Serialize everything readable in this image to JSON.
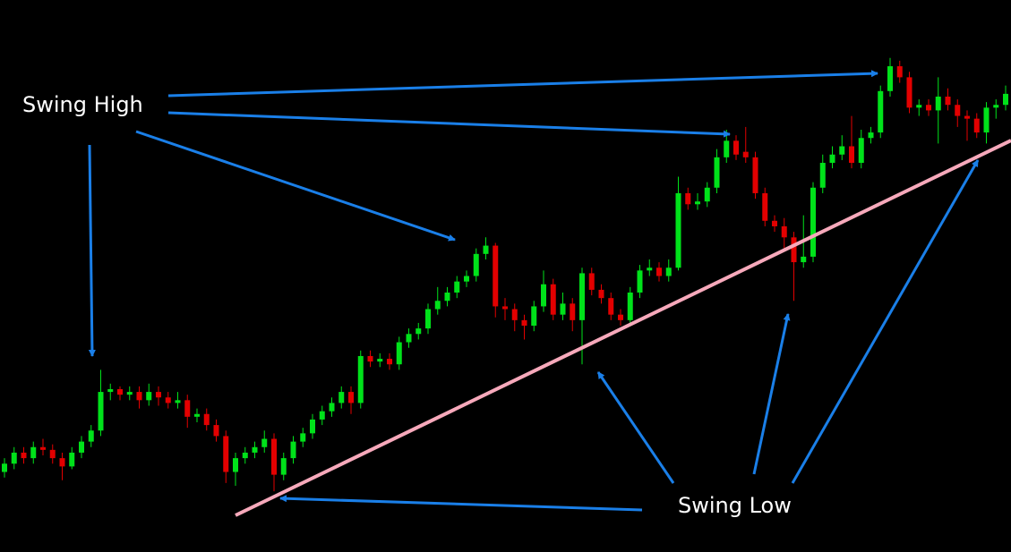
{
  "chart_data": {
    "type": "candlestick",
    "annotations": [
      "Swing High",
      "Swing Low"
    ],
    "up_color": "#00e21a",
    "down_color": "#e30000",
    "ylim": [
      0,
      100
    ],
    "ohlc": [
      [
        14.5,
        17,
        13.5,
        16
      ],
      [
        16,
        19,
        15,
        18
      ],
      [
        18,
        19,
        16,
        17
      ],
      [
        17,
        20,
        16,
        19
      ],
      [
        19,
        20.5,
        17.5,
        18.5
      ],
      [
        18.5,
        19.5,
        16,
        17
      ],
      [
        17,
        18,
        13,
        15.5
      ],
      [
        15.5,
        19,
        15,
        18
      ],
      [
        18,
        21,
        17,
        20
      ],
      [
        20,
        23,
        19,
        22
      ],
      [
        22,
        33,
        21,
        29
      ],
      [
        29,
        30.5,
        27.5,
        29.5
      ],
      [
        29.5,
        30,
        27.5,
        28.5
      ],
      [
        28.5,
        30,
        27.5,
        29
      ],
      [
        29,
        30,
        26,
        27.5
      ],
      [
        27.5,
        30.5,
        26.5,
        29
      ],
      [
        29,
        30,
        26.5,
        28
      ],
      [
        28,
        29,
        26,
        27
      ],
      [
        27,
        29,
        26,
        27.5
      ],
      [
        27.5,
        28.5,
        22.5,
        24.5
      ],
      [
        24.5,
        26,
        23.5,
        25
      ],
      [
        25,
        26,
        22,
        23
      ],
      [
        23,
        24,
        20,
        21
      ],
      [
        21,
        22,
        12.5,
        14.5
      ],
      [
        14.5,
        18,
        12,
        17
      ],
      [
        17,
        19,
        16,
        18
      ],
      [
        18,
        20,
        17,
        19
      ],
      [
        19,
        22,
        18,
        20.5
      ],
      [
        20.5,
        21.5,
        11,
        14
      ],
      [
        14,
        18,
        13,
        17
      ],
      [
        17,
        21,
        16,
        20
      ],
      [
        20,
        22.5,
        19,
        21.5
      ],
      [
        21.5,
        25,
        20.5,
        24
      ],
      [
        24,
        26.5,
        23,
        25.5
      ],
      [
        25.5,
        28,
        24.5,
        27
      ],
      [
        27,
        30,
        26,
        29
      ],
      [
        29,
        30,
        25,
        27
      ],
      [
        27,
        36.5,
        26,
        35.5
      ],
      [
        35.5,
        36.5,
        33.5,
        34.5
      ],
      [
        34.5,
        36,
        33.5,
        35
      ],
      [
        35,
        36,
        33,
        34
      ],
      [
        34,
        39,
        33,
        38
      ],
      [
        38,
        40.5,
        37,
        39.5
      ],
      [
        39.5,
        41.5,
        38.5,
        40.5
      ],
      [
        40.5,
        45,
        39.5,
        44
      ],
      [
        44,
        48,
        43,
        45.5
      ],
      [
        45.5,
        48,
        44.5,
        47
      ],
      [
        47,
        50,
        46,
        49
      ],
      [
        49,
        51,
        48,
        50
      ],
      [
        50,
        55,
        49,
        54
      ],
      [
        54,
        57,
        53,
        55.5
      ],
      [
        55.5,
        56,
        42.5,
        44.5
      ],
      [
        44.5,
        46,
        42,
        44
      ],
      [
        44,
        45,
        40,
        42
      ],
      [
        42,
        43,
        38.5,
        41
      ],
      [
        41,
        45.5,
        40,
        44.5
      ],
      [
        44.5,
        51,
        43.5,
        48.5
      ],
      [
        48.5,
        49.5,
        42,
        43
      ],
      [
        43,
        47,
        42,
        45
      ],
      [
        45,
        46,
        40,
        42
      ],
      [
        42,
        51.5,
        34,
        50.5
      ],
      [
        50.5,
        51.5,
        46.5,
        47.5
      ],
      [
        47.5,
        48.5,
        45,
        46
      ],
      [
        46,
        47,
        42,
        43
      ],
      [
        43,
        44,
        41,
        42
      ],
      [
        42,
        48,
        41,
        47
      ],
      [
        47,
        52,
        46,
        51
      ],
      [
        51,
        53,
        50,
        51.5
      ],
      [
        51.5,
        52.5,
        49,
        50
      ],
      [
        50,
        53,
        49,
        51.5
      ],
      [
        51.5,
        68,
        51,
        65
      ],
      [
        65,
        66,
        62,
        63
      ],
      [
        63,
        65,
        62,
        63.5
      ],
      [
        63.5,
        67,
        62.5,
        66
      ],
      [
        66,
        73,
        65,
        71.5
      ],
      [
        71.5,
        76.5,
        70.5,
        74.5
      ],
      [
        74.5,
        75.5,
        71,
        72
      ],
      [
        72.5,
        77,
        70.5,
        71.5
      ],
      [
        71.5,
        72.5,
        64,
        65
      ],
      [
        65,
        66,
        59,
        60
      ],
      [
        60,
        61,
        58,
        59
      ],
      [
        59,
        60.5,
        55,
        57
      ],
      [
        57,
        58,
        45.5,
        52.5
      ],
      [
        52.5,
        61,
        51.5,
        53.5
      ],
      [
        53.5,
        67,
        52.5,
        66
      ],
      [
        66,
        72,
        65,
        70.5
      ],
      [
        70.5,
        73.5,
        69.5,
        72
      ],
      [
        72,
        75.5,
        71,
        73.5
      ],
      [
        73.5,
        79,
        69.5,
        70.5
      ],
      [
        70.5,
        76.5,
        69.5,
        75
      ],
      [
        75,
        77,
        74,
        76
      ],
      [
        76,
        84.5,
        75,
        83.5
      ],
      [
        83.5,
        89.5,
        82.5,
        88
      ],
      [
        88,
        89,
        85,
        86
      ],
      [
        86,
        87,
        79.5,
        80.5
      ],
      [
        80.5,
        82,
        79,
        81
      ],
      [
        81,
        82,
        79,
        80
      ],
      [
        80,
        86,
        74,
        82.5
      ],
      [
        82.5,
        84,
        80,
        81
      ],
      [
        81,
        82,
        77,
        79
      ],
      [
        79,
        80,
        74.5,
        78.5
      ],
      [
        78.5,
        79.5,
        75,
        76
      ],
      [
        76,
        81.5,
        74,
        80.5
      ],
      [
        80.5,
        82,
        78.5,
        81
      ],
      [
        81,
        84.5,
        80,
        83
      ]
    ]
  }
}
